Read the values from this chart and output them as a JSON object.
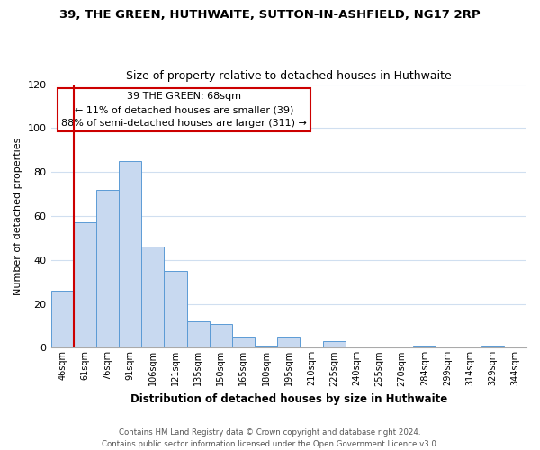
{
  "title": "39, THE GREEN, HUTHWAITE, SUTTON-IN-ASHFIELD, NG17 2RP",
  "subtitle": "Size of property relative to detached houses in Huthwaite",
  "xlabel": "Distribution of detached houses by size in Huthwaite",
  "ylabel": "Number of detached properties",
  "bar_labels": [
    "46sqm",
    "61sqm",
    "76sqm",
    "91sqm",
    "106sqm",
    "121sqm",
    "135sqm",
    "150sqm",
    "165sqm",
    "180sqm",
    "195sqm",
    "210sqm",
    "225sqm",
    "240sqm",
    "255sqm",
    "270sqm",
    "284sqm",
    "299sqm",
    "314sqm",
    "329sqm",
    "344sqm"
  ],
  "bar_values": [
    26,
    57,
    72,
    85,
    46,
    35,
    12,
    11,
    5,
    1,
    5,
    0,
    3,
    0,
    0,
    0,
    1,
    0,
    0,
    1,
    0
  ],
  "bar_color": "#c8d9f0",
  "bar_edge_color": "#5b9bd5",
  "vline_x": 1,
  "vline_color": "#cc0000",
  "ylim": [
    0,
    120
  ],
  "yticks": [
    0,
    20,
    40,
    60,
    80,
    100,
    120
  ],
  "annotation_title": "39 THE GREEN: 68sqm",
  "annotation_line1": "← 11% of detached houses are smaller (39)",
  "annotation_line2": "88% of semi-detached houses are larger (311) →",
  "annotation_box_color": "#ffffff",
  "annotation_box_edge": "#cc0000",
  "footer_line1": "Contains HM Land Registry data © Crown copyright and database right 2024.",
  "footer_line2": "Contains public sector information licensed under the Open Government Licence v3.0.",
  "background_color": "#ffffff",
  "grid_color": "#d0dff0"
}
